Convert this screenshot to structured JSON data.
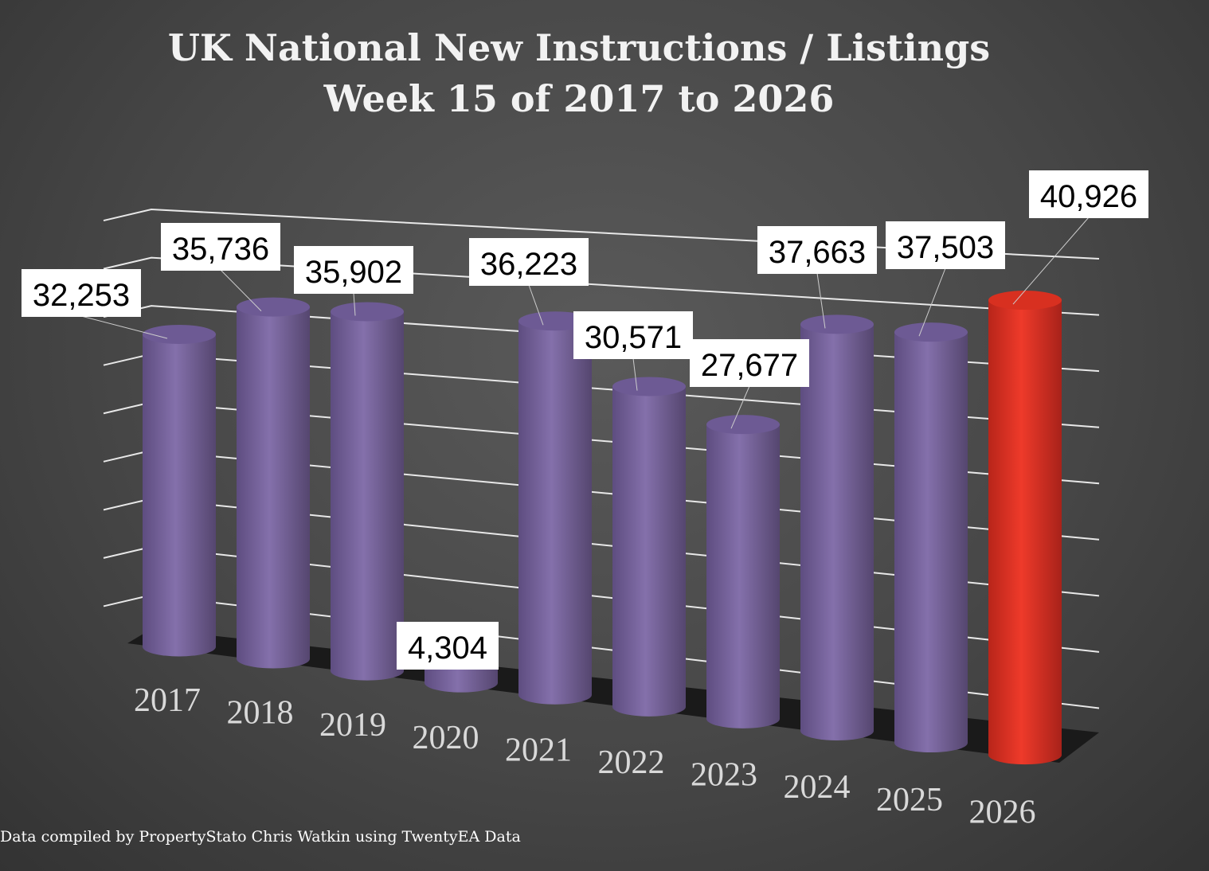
{
  "chart_data": {
    "type": "bar",
    "style": "3d-cylinder",
    "title": "UK National New Instructions / Listings",
    "subtitle": "Week 15 of 2017 to 2026",
    "categories": [
      "2017",
      "2018",
      "2019",
      "2020",
      "2021",
      "2022",
      "2023",
      "2024",
      "2025",
      "2026"
    ],
    "values": [
      32253,
      35736,
      35902,
      4304,
      36223,
      30571,
      27677,
      37663,
      37503,
      40926
    ],
    "data_labels": [
      "32,253",
      "35,736",
      "35,902",
      "4,304",
      "36,223",
      "30,571",
      "27,677",
      "37,663",
      "37,503",
      "40,926"
    ],
    "ylim": [
      0,
      45000
    ],
    "grid": true,
    "colors": {
      "default": "#7e68a6",
      "highlight": "#e23325",
      "highlight_category": "2026"
    },
    "footer": "Data compiled by PropertyStato Chris Watkin using TwentyEA Data"
  }
}
